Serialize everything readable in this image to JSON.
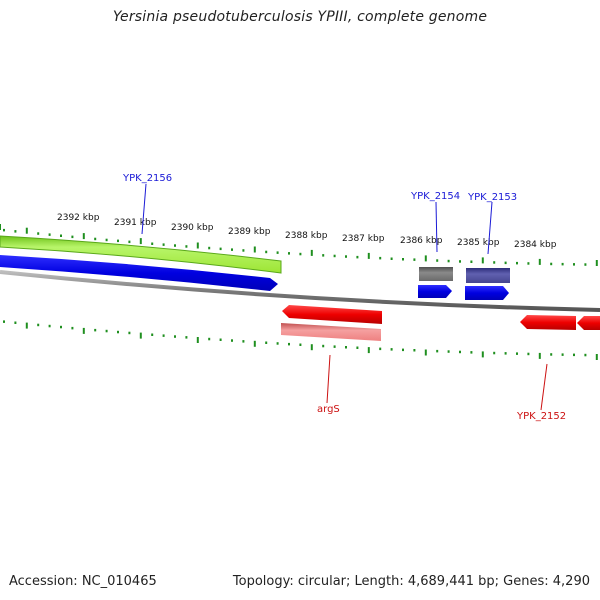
{
  "title": "Yersinia pseudotuberculosis YPIII, complete genome",
  "footer": {
    "accession": "Accession: NC_010465",
    "summary": "Topology: circular; Length: 4,689,441 bp; Genes: 4,290"
  },
  "scale_labels": [
    "2392 kbp",
    "2391 kbp",
    "2390 kbp",
    "2389 kbp",
    "2388 kbp",
    "2387 kbp",
    "2386 kbp",
    "2385 kbp",
    "2384 kbp"
  ],
  "genes": {
    "top": [
      "YPK_2156",
      "YPK_2154",
      "YPK_2153"
    ],
    "bottom": [
      "argS",
      "YPK_2152"
    ]
  },
  "colors": {
    "backbone": "#808080",
    "tick": "#1f8f1f",
    "forward_cds": "#0000e6",
    "reverse_cds": "#e60000",
    "forward_label": "#1a1ad6",
    "reverse_label": "#cc1111",
    "feature_green": "#a6f23a",
    "feature_pink": "#f08a8a",
    "feature_gray": "#707070",
    "feature_purple": "#4a4a9a"
  }
}
